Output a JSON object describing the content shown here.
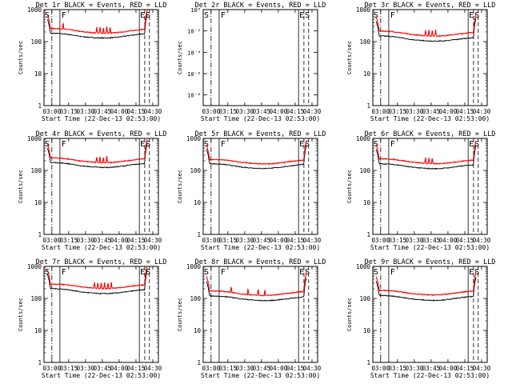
{
  "figure": {
    "xlabel": "Start Time (22-Dec-13 02:53:00)",
    "ylabel": "Counts/sec",
    "x_ticks": [
      "03:00",
      "03:15",
      "03:30",
      "03:45",
      "04:00",
      "04:15",
      "04:30"
    ],
    "x_tick_hours": [
      3.0,
      3.25,
      3.5,
      3.75,
      4.0,
      4.25,
      4.5
    ],
    "log_ticks": [
      "1",
      "10",
      "100",
      "1000"
    ],
    "small_ticks": [
      "10⁻⁸",
      "10⁻⁶",
      "10⁻⁴",
      "10⁻²",
      "10⁰"
    ],
    "markers": {
      "s": "S",
      "f": "F",
      "e": "E",
      "s2": "S"
    },
    "colors": {
      "events": "#000000",
      "lld": "#ff0000"
    }
  },
  "chart_data": [
    {
      "type": "line",
      "title": "Det 1r BLACK = Events, RED = LLD",
      "xlabel": "Start Time (22-Dec-13 02:53:00)",
      "ylabel": "Counts/sec",
      "yscale": "log",
      "ylim": [
        1,
        1000
      ],
      "x_range": [
        "02:53",
        "04:35"
      ],
      "series": [
        {
          "name": "Events",
          "color": "#000000",
          "level_start": 170,
          "level_mid": 140,
          "level_end": 160
        },
        {
          "name": "LLD",
          "color": "#ff0000",
          "level_start": 240,
          "level_mid": 200,
          "level_end": 220,
          "spikes_at": [
            "03:10",
            "03:40",
            "03:43",
            "03:46",
            "03:49",
            "03:52"
          ]
        }
      ]
    },
    {
      "type": "line",
      "title": "Det 2r BLACK = Events, RED = LLD",
      "xlabel": "Start Time (22-Dec-13 02:53:00)",
      "ylabel": "Counts/sec",
      "yscale": "log",
      "ylim": [
        1e-09,
        1
      ],
      "x_range": [
        "02:53",
        "04:35"
      ],
      "series": []
    },
    {
      "type": "line",
      "title": "Det 3r BLACK = Events, RED = LLD",
      "xlabel": "Start Time (22-Dec-13 02:53:00)",
      "ylabel": "Counts/sec",
      "yscale": "log",
      "ylim": [
        1,
        1000
      ],
      "x_range": [
        "02:53",
        "04:35"
      ],
      "series": [
        {
          "name": "Events",
          "color": "#000000",
          "level_start": 140,
          "level_mid": 115,
          "level_end": 120
        },
        {
          "name": "LLD",
          "color": "#ff0000",
          "level_start": 200,
          "level_mid": 165,
          "level_end": 175,
          "spikes_at": [
            "03:40",
            "03:43",
            "03:46",
            "03:49"
          ]
        }
      ]
    },
    {
      "type": "line",
      "title": "Det 4r BLACK = Events, RED = LLD",
      "xlabel": "Start Time (22-Dec-13 02:53:00)",
      "ylabel": "Counts/sec",
      "yscale": "log",
      "ylim": [
        1,
        1000
      ],
      "x_range": [
        "02:53",
        "04:35"
      ],
      "series": [
        {
          "name": "Events",
          "color": "#000000",
          "level_start": 165,
          "level_mid": 135,
          "level_end": 150
        },
        {
          "name": "LLD",
          "color": "#ff0000",
          "level_start": 230,
          "level_mid": 190,
          "level_end": 210,
          "spikes_at": [
            "03:40",
            "03:43",
            "03:46",
            "03:49"
          ]
        }
      ]
    },
    {
      "type": "line",
      "title": "Det 5r BLACK = Events, RED = LLD",
      "xlabel": "Start Time (22-Dec-13 02:53:00)",
      "ylabel": "Counts/sec",
      "yscale": "log",
      "ylim": [
        1,
        1000
      ],
      "x_range": [
        "02:53",
        "04:35"
      ],
      "series": [
        {
          "name": "Events",
          "color": "#000000",
          "level_start": 150,
          "level_mid": 125,
          "level_end": 140
        },
        {
          "name": "LLD",
          "color": "#ff0000",
          "level_start": 205,
          "level_mid": 175,
          "level_end": 190,
          "spikes_at": []
        }
      ]
    },
    {
      "type": "line",
      "title": "Det 6r BLACK = Events, RED = LLD",
      "xlabel": "Start Time (22-Dec-13 02:53:00)",
      "ylabel": "Counts/sec",
      "yscale": "log",
      "ylim": [
        1,
        1000
      ],
      "x_range": [
        "02:53",
        "04:35"
      ],
      "series": [
        {
          "name": "Events",
          "color": "#000000",
          "level_start": 150,
          "level_mid": 125,
          "level_end": 135
        },
        {
          "name": "LLD",
          "color": "#ff0000",
          "level_start": 215,
          "level_mid": 180,
          "level_end": 190,
          "spikes_at": [
            "03:40",
            "03:43",
            "03:46"
          ]
        }
      ]
    },
    {
      "type": "line",
      "title": "Det 7r BLACK = Events, RED = LLD",
      "xlabel": "Start Time (22-Dec-13 02:53:00)",
      "ylabel": "Counts/sec",
      "yscale": "log",
      "ylim": [
        1,
        1000
      ],
      "x_range": [
        "02:53",
        "04:35"
      ],
      "series": [
        {
          "name": "Events",
          "color": "#000000",
          "level_start": 190,
          "level_mid": 155,
          "level_end": 170
        },
        {
          "name": "LLD",
          "color": "#ff0000",
          "level_start": 260,
          "level_mid": 225,
          "level_end": 240,
          "spikes_at": [
            "03:38",
            "03:41",
            "03:44",
            "03:47",
            "03:50",
            "03:53"
          ]
        }
      ]
    },
    {
      "type": "line",
      "title": "Det 8r BLACK = Events, RED = LLD",
      "xlabel": "Start Time (22-Dec-13 02:53:00)",
      "ylabel": "Counts/sec",
      "yscale": "log",
      "ylim": [
        1,
        1000
      ],
      "x_range": [
        "02:53",
        "04:35"
      ],
      "series": [
        {
          "name": "Events",
          "color": "#000000",
          "level_start": 110,
          "level_mid": 95,
          "level_end": 100
        },
        {
          "name": "LLD",
          "color": "#ff0000",
          "level_start": 160,
          "level_mid": 135,
          "level_end": 150,
          "spikes_at": [
            "03:18",
            "03:33",
            "03:42",
            "03:48"
          ]
        }
      ]
    },
    {
      "type": "line",
      "title": "Det 9r BLACK = Events, RED = LLD",
      "xlabel": "Start Time (22-Dec-13 02:53:00)",
      "ylabel": "Counts/sec",
      "yscale": "log",
      "ylim": [
        1,
        1000
      ],
      "x_range": [
        "02:53",
        "04:35"
      ],
      "series": [
        {
          "name": "Events",
          "color": "#000000",
          "level_start": 115,
          "level_mid": 95,
          "level_end": 105
        },
        {
          "name": "LLD",
          "color": "#ff0000",
          "level_start": 165,
          "level_mid": 140,
          "level_end": 155,
          "spikes_at": []
        }
      ]
    }
  ]
}
